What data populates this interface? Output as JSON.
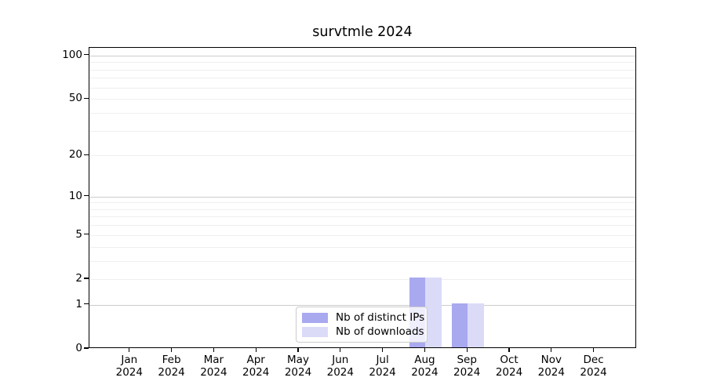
{
  "chart_data": {
    "type": "bar",
    "title": "survtmle 2024",
    "months": [
      "Jan",
      "Feb",
      "Mar",
      "Apr",
      "May",
      "Jun",
      "Jul",
      "Aug",
      "Sep",
      "Oct",
      "Nov",
      "Dec"
    ],
    "year": "2024",
    "series": [
      {
        "name": "Nb of distinct IPs",
        "color": "#a9a9f0",
        "values": [
          0,
          0,
          0,
          0,
          0,
          0,
          0,
          2,
          1,
          0,
          0,
          0
        ]
      },
      {
        "name": "Nb of downloads",
        "color": "#dbdbf8",
        "values": [
          0,
          0,
          0,
          0,
          0,
          0,
          0,
          2,
          1,
          0,
          0,
          0
        ]
      }
    ],
    "yscale": "log1p",
    "ylim": [
      0,
      113
    ],
    "yticks": [
      0,
      1,
      2,
      5,
      10,
      20,
      50,
      100
    ],
    "minor_gridlines": [
      2,
      3,
      4,
      5,
      6,
      7,
      8,
      9,
      20,
      30,
      40,
      50,
      60,
      70,
      80,
      90
    ],
    "major_gridlines": [
      1,
      10,
      100
    ],
    "grid_minor_color": "#efefef",
    "grid_major_color": "#cccccc",
    "axis_color": "#000000",
    "legend_position": "lower center",
    "grid": "on"
  }
}
